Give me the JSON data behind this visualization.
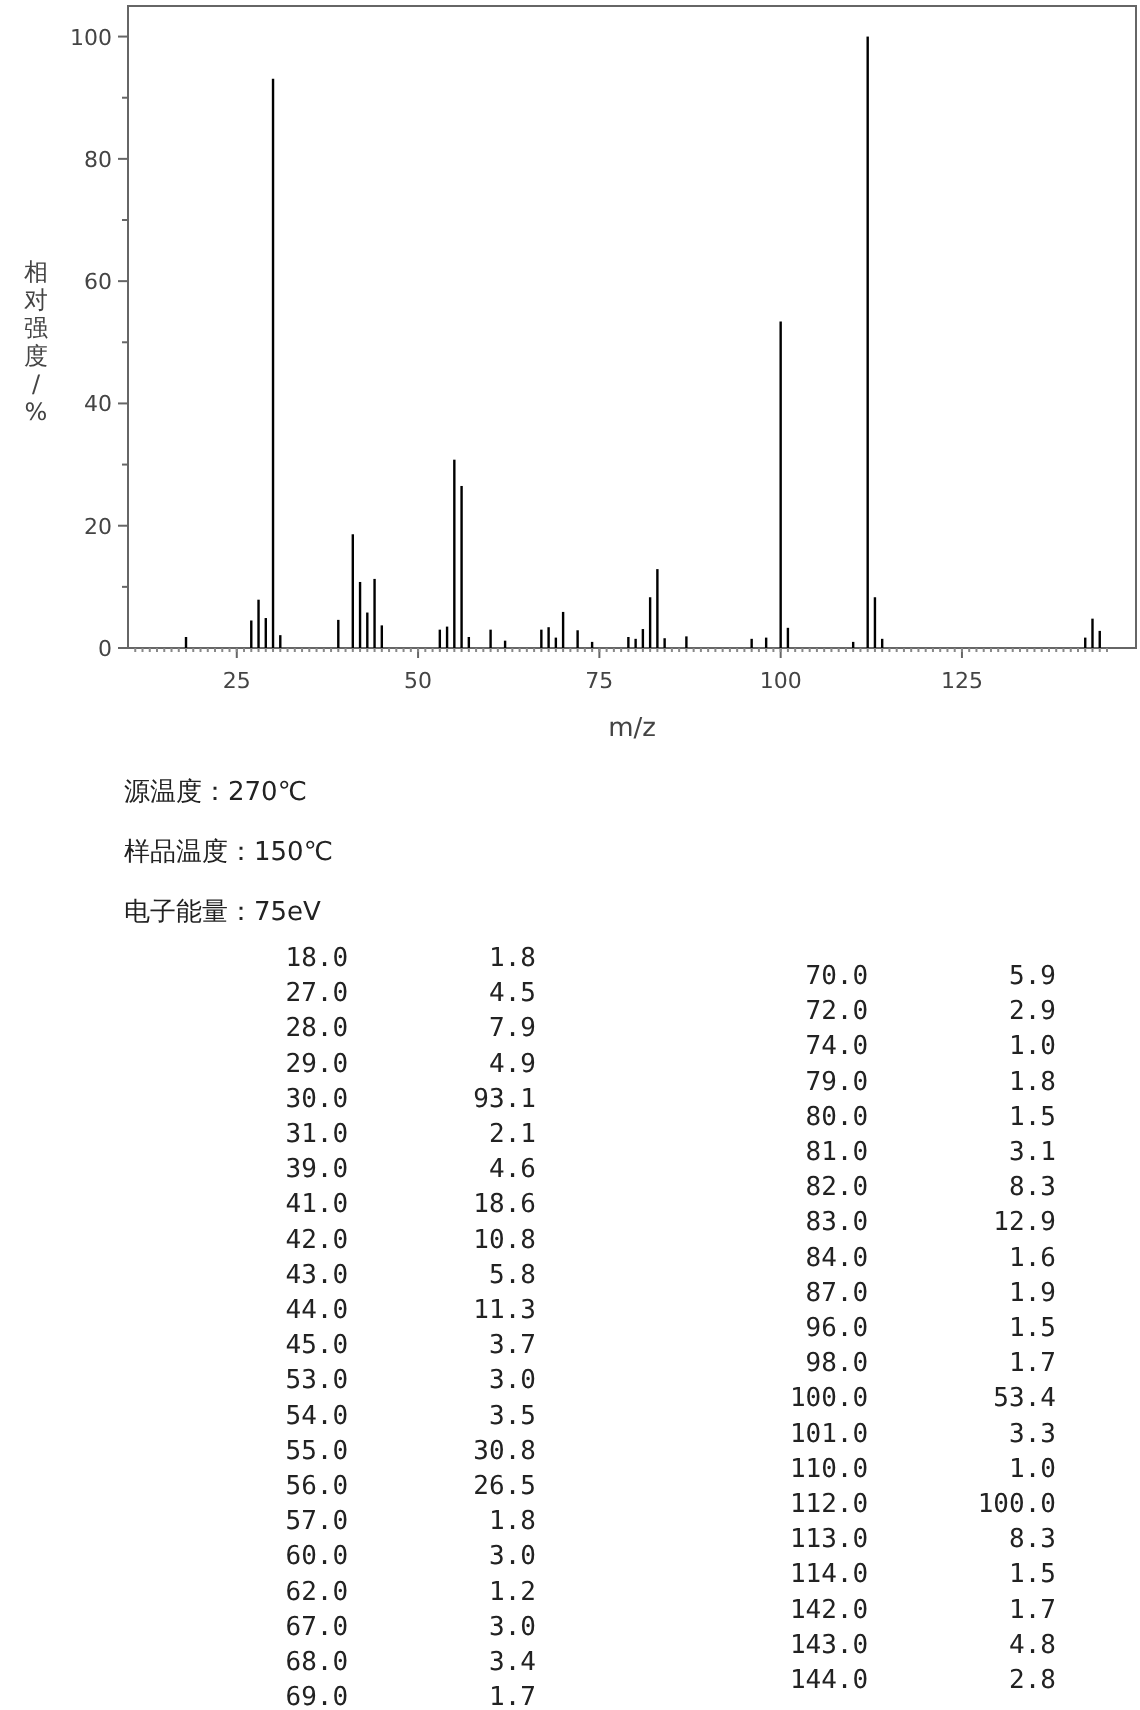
{
  "chart_data": {
    "type": "bar",
    "xlabel": "m/z",
    "ylabel": "相对强度/%",
    "x": [
      18,
      27,
      28,
      29,
      30,
      31,
      39,
      41,
      42,
      43,
      44,
      45,
      53,
      54,
      55,
      56,
      57,
      60,
      62,
      67,
      68,
      69,
      70,
      72,
      74,
      79,
      80,
      81,
      82,
      83,
      84,
      87,
      96,
      98,
      100,
      101,
      110,
      112,
      113,
      114,
      142,
      143,
      144
    ],
    "values": [
      1.8,
      4.5,
      7.9,
      4.9,
      93.1,
      2.1,
      4.6,
      18.6,
      10.8,
      5.8,
      11.3,
      3.7,
      3.0,
      3.5,
      30.8,
      26.5,
      1.8,
      3.0,
      1.2,
      3.0,
      3.4,
      1.7,
      5.9,
      2.9,
      1.0,
      1.8,
      1.5,
      3.1,
      8.3,
      12.9,
      1.6,
      1.9,
      1.5,
      1.7,
      53.4,
      3.3,
      1.0,
      100.0,
      8.3,
      1.5,
      1.7,
      4.8,
      2.8
    ],
    "color": "#000000",
    "xlim": [
      10,
      149
    ],
    "xticks": [
      25,
      50,
      75,
      100,
      125
    ],
    "ylim": [
      0,
      105
    ],
    "yticks": [
      0,
      20,
      40,
      60,
      80,
      100
    ],
    "annotations": [
      "源温度：270℃",
      "样品温度：150℃",
      "电子能量：75eV",
      "18.0         1.8",
      "27.0         4.5",
      "28.0         7.9",
      "29.0         4.9",
      "30.0        93.1",
      "31.0         2.1",
      "39.0         4.6",
      "41.0        18.6",
      "42.0        10.8",
      "43.0         5.8",
      "44.0        11.3",
      "45.0         3.7",
      "53.0         3.0",
      "54.0         3.5",
      "55.0        30.8",
      "56.0        26.5",
      "57.0         1.8",
      "60.0         3.0",
      "62.0         1.2",
      "67.0         3.0",
      "68.0         3.4",
      "69.0         1.7",
      "70.0         5.9",
      "72.0         2.9",
      "74.0         1.0",
      "79.0         1.8",
      "80.0         1.5",
      "81.0         3.1",
      "82.0         8.3",
      "83.0        12.9",
      "84.0         1.6",
      "87.0         1.9",
      "96.0         1.5",
      "98.0         1.7",
      "100.0        53.4",
      "101.0         3.3",
      "110.0         1.0",
      "112.0       100.0",
      "113.0         8.3",
      "114.0         1.5",
      "142.0         1.7",
      "143.0         4.8",
      "144.0         2.8"
    ]
  }
}
